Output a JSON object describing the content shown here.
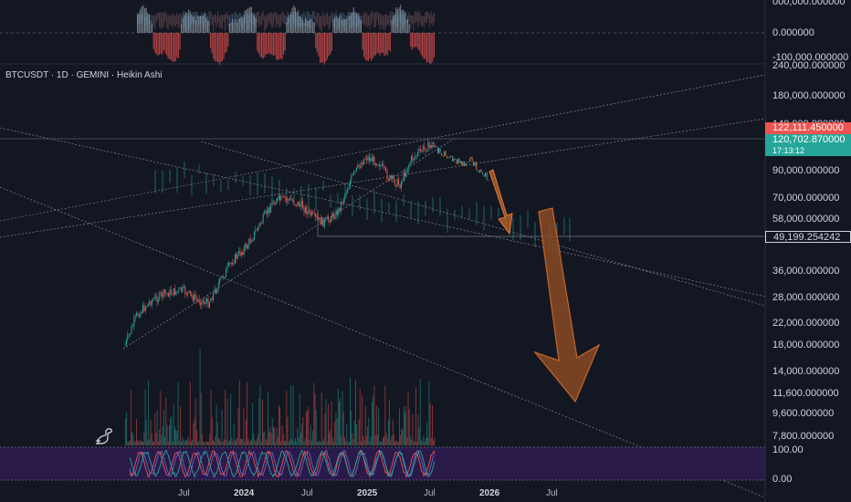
{
  "chart": {
    "title": "BTCUSDT · 1D · GEMINI · Heikin Ashi"
  },
  "top_oscillator_axis": {
    "labels": [
      "000,000.000000",
      "0.000000",
      "-100,000.000000"
    ]
  },
  "price_axis": {
    "labels": [
      "240,000.000000",
      "180,000.000000",
      "140,000.000000",
      "90,000.000000",
      "70,000.000000",
      "58,000.000000",
      "36,000.000000",
      "28,000.000000",
      "22,000.000000",
      "18,000.000000",
      "14,000.000000",
      "11,600.000000",
      "9,600.000000",
      "7,800.000000"
    ],
    "tags": {
      "high": {
        "label": "122,111.450000",
        "color": "#ef5350"
      },
      "last": {
        "label": "120,702.870000",
        "color": "#26a69a"
      },
      "countdown": {
        "label": "17:13:12",
        "color": "#26a69a"
      },
      "level": {
        "label": "49,199.254242",
        "color": "#131722"
      }
    }
  },
  "bottom_oscillator_axis": {
    "labels": [
      "100.00",
      "0.00"
    ]
  },
  "time_axis": {
    "labels": [
      "Jul",
      "2024",
      "Jul",
      "2025",
      "Jul",
      "2026",
      "Jul"
    ]
  },
  "colors": {
    "background": "#131722",
    "up": "#26a69a",
    "down": "#ef5350",
    "arrow": "#c2652a",
    "oscillator_fill": "#2a1a4a"
  },
  "icons": {
    "watermark": "dino-icon"
  }
}
